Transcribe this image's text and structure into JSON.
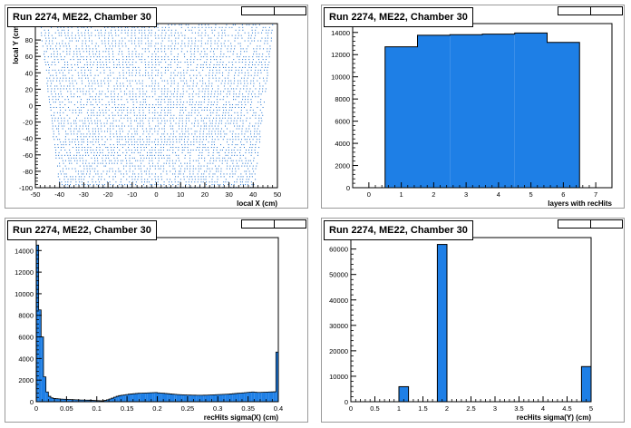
{
  "colors": {
    "fill": "#1e7fe6",
    "stroke": "#000000",
    "points": "#1a6fcf"
  },
  "pads": [
    {
      "title": "Run 2274, ME22, Chamber 30"
    },
    {
      "title": "Run 2274, ME22, Chamber 30"
    },
    {
      "title": "Run 2274, ME22, Chamber 30"
    },
    {
      "title": "Run 2274, ME22, Chamber 30"
    }
  ],
  "chart_data": [
    {
      "type": "scatter",
      "title": "Run 2274, ME22, Chamber 30",
      "xlabel": "local X (cm)",
      "ylabel": "local Y (cm)",
      "xlim": [
        -50,
        50
      ],
      "ylim": [
        -100,
        100
      ],
      "xticks": [
        -50,
        -40,
        -30,
        -20,
        -10,
        0,
        10,
        20,
        30,
        40,
        50
      ],
      "yticks": [
        -100,
        -80,
        -60,
        -40,
        -20,
        0,
        20,
        40,
        60,
        80
      ],
      "grid": false,
      "description_shape": "trapezoid",
      "top_half_width": 48,
      "bottom_half_width": 40
    },
    {
      "type": "bar",
      "title": "Run 2274, ME22, Chamber 30",
      "xlabel": "layers with recHits",
      "ylabel": "",
      "xlim": [
        -0.5,
        7.5
      ],
      "ylim": [
        0,
        14800
      ],
      "xticks": [
        0,
        1,
        2,
        3,
        4,
        5,
        6,
        7
      ],
      "yticks": [
        0,
        2000,
        4000,
        6000,
        8000,
        10000,
        12000,
        14000
      ],
      "categories": [
        1,
        2,
        3,
        4,
        5,
        6
      ],
      "values": [
        12700,
        13750,
        13800,
        13850,
        13950,
        13100
      ]
    },
    {
      "type": "bar",
      "title": "Run 2274, ME22, Chamber 30",
      "xlabel": "recHits sigma(X) (cm)",
      "ylabel": "",
      "xlim": [
        0,
        0.4
      ],
      "ylim": [
        0,
        15200
      ],
      "xticks": [
        0,
        0.05,
        0.1,
        0.15,
        0.2,
        0.25,
        0.3,
        0.35,
        0.4
      ],
      "xticklabels": [
        "0",
        "0.05",
        "0.1",
        "0.15",
        "0.2",
        "0.25",
        "0.3",
        "0.35",
        "0.4"
      ],
      "yticks": [
        0,
        2000,
        4000,
        6000,
        8000,
        10000,
        12000,
        14000
      ],
      "bin_width": 0.004,
      "values": [
        14500,
        8500,
        6000,
        2300,
        900,
        500,
        350,
        300,
        280,
        260,
        240,
        230,
        220,
        210,
        200,
        190,
        180,
        170,
        160,
        155,
        150,
        140,
        130,
        120,
        110,
        100,
        90,
        80,
        120,
        180,
        250,
        330,
        420,
        500,
        560,
        600,
        630,
        660,
        700,
        720,
        740,
        760,
        780,
        790,
        800,
        810,
        820,
        830,
        840,
        850,
        820,
        800,
        780,
        760,
        740,
        720,
        700,
        680,
        660,
        650,
        640,
        630,
        620,
        615,
        610,
        605,
        600,
        600,
        600,
        605,
        610,
        620,
        630,
        640,
        650,
        660,
        670,
        680,
        690,
        700,
        720,
        740,
        760,
        780,
        800,
        820,
        840,
        860,
        880,
        900,
        880,
        860,
        860,
        870,
        880,
        890,
        900,
        910,
        920,
        4600
      ]
    },
    {
      "type": "bar",
      "title": "Run 2274, ME22, Chamber 30",
      "xlabel": "recHits sigma(Y) (cm)",
      "ylabel": "",
      "xlim": [
        0,
        5
      ],
      "ylim": [
        0,
        64500
      ],
      "xticks": [
        0,
        0.5,
        1,
        1.5,
        2,
        2.5,
        3,
        3.5,
        4,
        4.5,
        5
      ],
      "xticklabels": [
        "0",
        "0.5",
        "1",
        "1.5",
        "2",
        "2.5",
        "3",
        "3.5",
        "4",
        "4.5",
        "5"
      ],
      "yticks": [
        0,
        10000,
        20000,
        30000,
        40000,
        50000,
        60000
      ],
      "bins": [
        {
          "x0": 1.0,
          "x1": 1.2,
          "value": 5900
        },
        {
          "x0": 1.8,
          "x1": 2.0,
          "value": 61800
        },
        {
          "x0": 4.8,
          "x1": 5.0,
          "value": 13800
        }
      ]
    }
  ]
}
